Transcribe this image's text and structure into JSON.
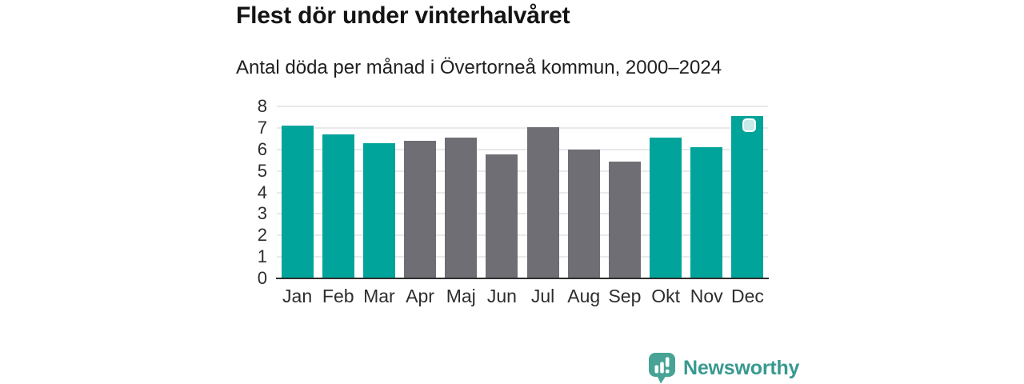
{
  "chart_data": {
    "type": "bar",
    "title": "Flest dör under vinterhalvåret",
    "subtitle": "Antal döda per månad i Övertorneå kommun, 2000–2024",
    "categories": [
      "Jan",
      "Feb",
      "Mar",
      "Apr",
      "Maj",
      "Jun",
      "Jul",
      "Aug",
      "Sep",
      "Okt",
      "Nov",
      "Dec"
    ],
    "values": [
      7.1,
      6.7,
      6.3,
      6.4,
      6.55,
      5.75,
      7.05,
      6.0,
      5.45,
      6.55,
      6.1,
      7.55
    ],
    "highlighted": [
      true,
      true,
      true,
      false,
      false,
      false,
      false,
      false,
      false,
      true,
      true,
      true
    ],
    "highlight_color": "#00a49b",
    "default_color": "#6f6e74",
    "ylim": [
      0,
      8
    ],
    "yticks": [
      0,
      1,
      2,
      3,
      4,
      5,
      6,
      7,
      8
    ],
    "grid": true,
    "gridline_color": "#e9e9e9",
    "axis_color": "#2e2e2e",
    "tick_label_color": "#2d2d2d",
    "legend": "none",
    "selection_handle": {
      "category": "Dec"
    }
  },
  "footer": {
    "brand": "Newsworthy",
    "brand_color": "#38998f",
    "logo_mark_color": "#46a396"
  }
}
